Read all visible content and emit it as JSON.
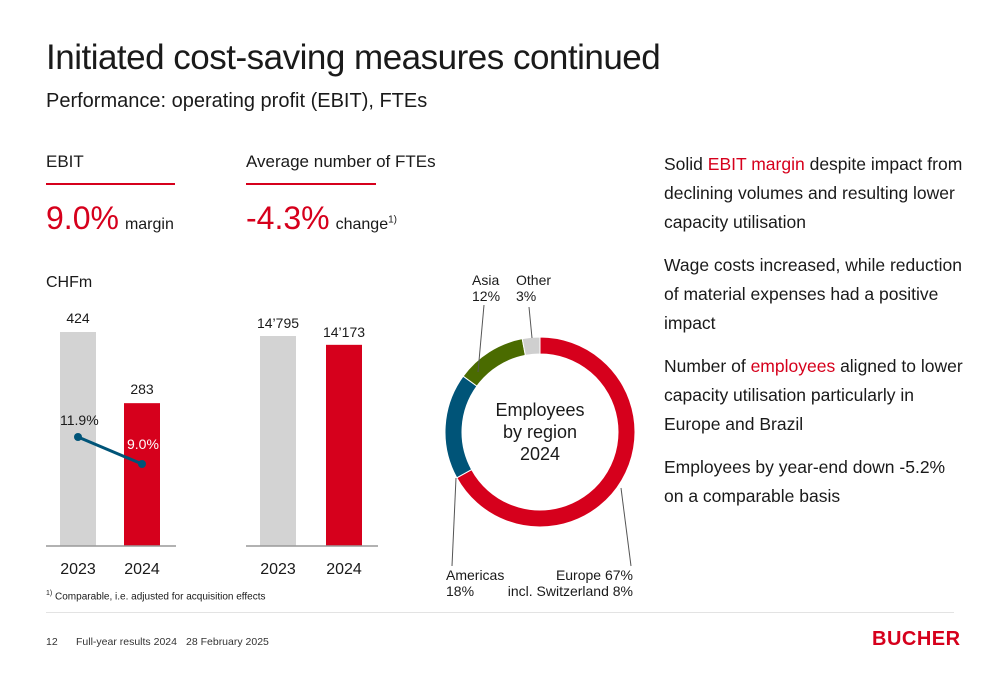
{
  "title": "Initiated cost-saving measures continued",
  "subtitle": "Performance: operating profit (EBIT), FTEs",
  "ebit": {
    "heading": "EBIT",
    "value": "9.0%",
    "unit": "margin",
    "currency_label": "CHFm"
  },
  "fte": {
    "heading": "Average number of FTEs",
    "value": "-4.3%",
    "unit": "change",
    "footnote_ref": "1)"
  },
  "bullets": [
    {
      "before": "Solid ",
      "highlight": "EBIT margin",
      "after": " despite impact from declining volumes and resulting lower capacity utilisation"
    },
    {
      "before": "Wage costs increased, while reduction of material expenses had a positive impact",
      "highlight": "",
      "after": ""
    },
    {
      "before": "Number of ",
      "highlight": "employees",
      "after": " aligned to lower capacity utilisation particularly in Europe and Brazil"
    },
    {
      "before": "Employees by year-end down -5.2% on a comparable basis",
      "highlight": "",
      "after": ""
    }
  ],
  "footnote": {
    "marker": "1)",
    "text": "Comparable, i.e. adjusted for acquisition effects"
  },
  "footer": {
    "page": "12",
    "doc": "Full-year results 2024",
    "date": "28 February 2025",
    "logo": "BUCHER"
  },
  "colors": {
    "accent": "#d6001c",
    "grey_bar": "#d3d3d3",
    "americas": "#005478",
    "asia": "#4a6b00",
    "other": "#cfcfcf",
    "line": "#005478"
  },
  "chart_data": [
    {
      "type": "bar",
      "title": "",
      "ylabel": "CHFm",
      "categories": [
        "2023",
        "2024"
      ],
      "series": [
        {
          "values": [
            424,
            283
          ],
          "labels": [
            "424",
            "283"
          ]
        }
      ],
      "line_series": {
        "values": [
          11.9,
          9.0
        ],
        "labels": [
          "11.9%",
          "9.0%"
        ]
      },
      "ylim": [
        0,
        450
      ],
      "grid": false
    },
    {
      "type": "bar",
      "title": "",
      "categories": [
        "2023",
        "2024"
      ],
      "series": [
        {
          "values": [
            14795,
            14173
          ],
          "labels": [
            "14’795",
            "14’173"
          ]
        }
      ],
      "ylim": [
        0,
        16000
      ],
      "grid": false
    },
    {
      "type": "pie",
      "title": "Employees by region 2024",
      "slices": [
        {
          "name": "Europe",
          "value": 67,
          "label_top": "Europe 67%",
          "label_bottom": "incl. Switzerland 8%"
        },
        {
          "name": "Americas",
          "value": 18,
          "label_top": "Americas",
          "label_bottom": "18%"
        },
        {
          "name": "Asia",
          "value": 12,
          "label_top": "Asia",
          "label_bottom": "12%"
        },
        {
          "name": "Other",
          "value": 3,
          "label_top": "Other",
          "label_bottom": "3%"
        }
      ]
    }
  ]
}
